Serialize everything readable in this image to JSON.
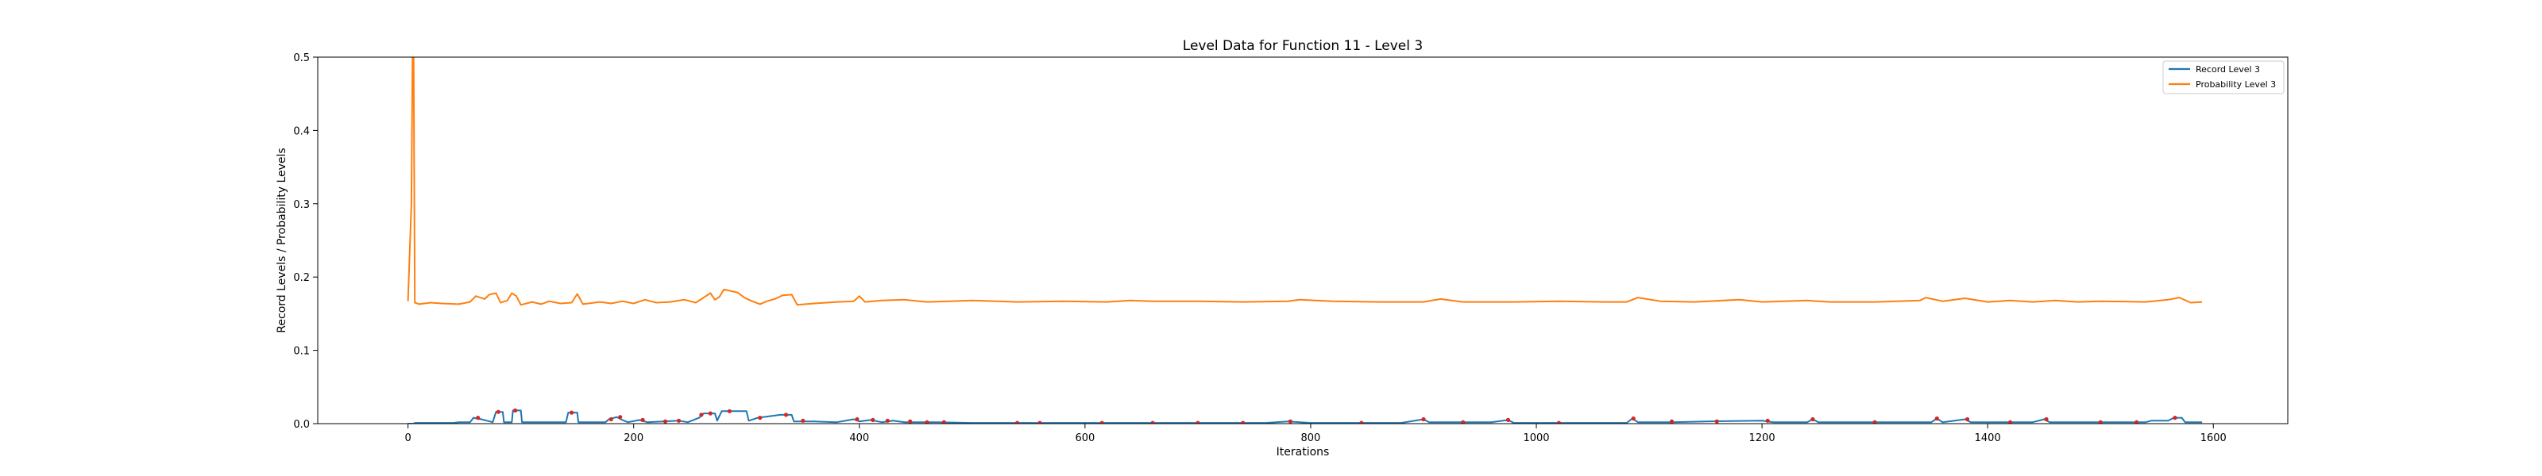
{
  "chart_data": {
    "type": "line",
    "title": "Level Data for Function 11 - Level 3",
    "xlabel": "Iterations",
    "ylabel": "Record Levels / Probability Levels",
    "xlim": [
      -80,
      1666
    ],
    "ylim": [
      0,
      0.5
    ],
    "x_ticks": [
      0,
      200,
      400,
      600,
      800,
      1000,
      1200,
      1400,
      1600
    ],
    "y_ticks": [
      0.0,
      0.1,
      0.2,
      0.3,
      0.4,
      0.5
    ],
    "x_tick_labels": [
      "0",
      "200",
      "400",
      "600",
      "800",
      "1000",
      "1200",
      "1400",
      "1600"
    ],
    "y_tick_labels": [
      "0.0",
      "0.1",
      "0.2",
      "0.3",
      "0.4",
      "0.5"
    ],
    "legend_position": "top-right",
    "grid": false,
    "series": [
      {
        "name": "Record Level 3",
        "color": "#1f77b4",
        "points": [
          [
            0,
            0
          ],
          [
            5,
            0
          ],
          [
            6,
            0.001
          ],
          [
            40,
            0.001
          ],
          [
            45,
            0.002
          ],
          [
            55,
            0.002
          ],
          [
            58,
            0.008
          ],
          [
            65,
            0.006
          ],
          [
            70,
            0.004
          ],
          [
            75,
            0.002
          ],
          [
            78,
            0.016
          ],
          [
            84,
            0.016
          ],
          [
            85,
            0.002
          ],
          [
            92,
            0.002
          ],
          [
            93,
            0.018
          ],
          [
            100,
            0.018
          ],
          [
            101,
            0.002
          ],
          [
            140,
            0.002
          ],
          [
            142,
            0.015
          ],
          [
            150,
            0.015
          ],
          [
            151,
            0.002
          ],
          [
            175,
            0.002
          ],
          [
            178,
            0.006
          ],
          [
            185,
            0.009
          ],
          [
            190,
            0.005
          ],
          [
            195,
            0.002
          ],
          [
            205,
            0.005
          ],
          [
            212,
            0.002
          ],
          [
            240,
            0.004
          ],
          [
            248,
            0.002
          ],
          [
            258,
            0.008
          ],
          [
            262,
            0.014
          ],
          [
            272,
            0.014
          ],
          [
            274,
            0.004
          ],
          [
            278,
            0.017
          ],
          [
            300,
            0.017
          ],
          [
            302,
            0.004
          ],
          [
            310,
            0.008
          ],
          [
            330,
            0.012
          ],
          [
            340,
            0.012
          ],
          [
            342,
            0.003
          ],
          [
            360,
            0.003
          ],
          [
            380,
            0.002
          ],
          [
            395,
            0.006
          ],
          [
            400,
            0.003
          ],
          [
            410,
            0.005
          ],
          [
            420,
            0.002
          ],
          [
            430,
            0.004
          ],
          [
            440,
            0.002
          ],
          [
            470,
            0.002
          ],
          [
            500,
            0.001
          ],
          [
            600,
            0.001
          ],
          [
            760,
            0.001
          ],
          [
            780,
            0.003
          ],
          [
            800,
            0.001
          ],
          [
            880,
            0.001
          ],
          [
            900,
            0.006
          ],
          [
            905,
            0.002
          ],
          [
            960,
            0.002
          ],
          [
            975,
            0.005
          ],
          [
            980,
            0.001
          ],
          [
            1080,
            0.001
          ],
          [
            1085,
            0.007
          ],
          [
            1090,
            0.002
          ],
          [
            1120,
            0.002
          ],
          [
            1150,
            0.003
          ],
          [
            1200,
            0.004
          ],
          [
            1210,
            0.002
          ],
          [
            1240,
            0.002
          ],
          [
            1245,
            0.006
          ],
          [
            1250,
            0.002
          ],
          [
            1350,
            0.002
          ],
          [
            1355,
            0.007
          ],
          [
            1360,
            0.002
          ],
          [
            1380,
            0.006
          ],
          [
            1385,
            0.002
          ],
          [
            1440,
            0.002
          ],
          [
            1450,
            0.006
          ],
          [
            1455,
            0.002
          ],
          [
            1540,
            0.002
          ],
          [
            1545,
            0.004
          ],
          [
            1560,
            0.004
          ],
          [
            1565,
            0.008
          ],
          [
            1572,
            0.008
          ],
          [
            1575,
            0.002
          ],
          [
            1590,
            0.002
          ]
        ],
        "markers": [
          [
            62,
            0.008
          ],
          [
            80,
            0.016
          ],
          [
            95,
            0.018
          ],
          [
            145,
            0.015
          ],
          [
            180,
            0.006
          ],
          [
            188,
            0.009
          ],
          [
            208,
            0.005
          ],
          [
            228,
            0.003
          ],
          [
            240,
            0.004
          ],
          [
            260,
            0.012
          ],
          [
            268,
            0.014
          ],
          [
            285,
            0.017
          ],
          [
            312,
            0.008
          ],
          [
            335,
            0.012
          ],
          [
            350,
            0.004
          ],
          [
            398,
            0.006
          ],
          [
            412,
            0.005
          ],
          [
            425,
            0.004
          ],
          [
            445,
            0.003
          ],
          [
            460,
            0.002
          ],
          [
            475,
            0.002
          ],
          [
            540,
            0.001
          ],
          [
            560,
            0.001
          ],
          [
            615,
            0.001
          ],
          [
            660,
            0.001
          ],
          [
            700,
            0.001
          ],
          [
            740,
            0.001
          ],
          [
            782,
            0.003
          ],
          [
            845,
            0.001
          ],
          [
            900,
            0.006
          ],
          [
            935,
            0.002
          ],
          [
            975,
            0.005
          ],
          [
            1020,
            0.001
          ],
          [
            1086,
            0.007
          ],
          [
            1120,
            0.003
          ],
          [
            1160,
            0.003
          ],
          [
            1205,
            0.004
          ],
          [
            1245,
            0.006
          ],
          [
            1300,
            0.002
          ],
          [
            1355,
            0.007
          ],
          [
            1382,
            0.006
          ],
          [
            1420,
            0.002
          ],
          [
            1452,
            0.006
          ],
          [
            1500,
            0.002
          ],
          [
            1532,
            0.002
          ],
          [
            1566,
            0.008
          ]
        ]
      },
      {
        "name": "Probability Level 3",
        "color": "#ff7f0e",
        "points": [
          [
            0,
            0.167
          ],
          [
            3,
            0.3
          ],
          [
            4,
            0.5
          ],
          [
            5,
            0.5
          ],
          [
            6,
            0.165
          ],
          [
            10,
            0.163
          ],
          [
            20,
            0.165
          ],
          [
            30,
            0.164
          ],
          [
            45,
            0.163
          ],
          [
            55,
            0.166
          ],
          [
            60,
            0.174
          ],
          [
            68,
            0.17
          ],
          [
            72,
            0.176
          ],
          [
            78,
            0.178
          ],
          [
            82,
            0.165
          ],
          [
            88,
            0.168
          ],
          [
            92,
            0.178
          ],
          [
            96,
            0.174
          ],
          [
            100,
            0.162
          ],
          [
            110,
            0.166
          ],
          [
            118,
            0.163
          ],
          [
            125,
            0.167
          ],
          [
            135,
            0.164
          ],
          [
            145,
            0.165
          ],
          [
            150,
            0.177
          ],
          [
            155,
            0.163
          ],
          [
            170,
            0.166
          ],
          [
            180,
            0.164
          ],
          [
            190,
            0.167
          ],
          [
            200,
            0.164
          ],
          [
            210,
            0.169
          ],
          [
            220,
            0.165
          ],
          [
            232,
            0.166
          ],
          [
            245,
            0.169
          ],
          [
            255,
            0.165
          ],
          [
            262,
            0.172
          ],
          [
            268,
            0.178
          ],
          [
            272,
            0.169
          ],
          [
            276,
            0.173
          ],
          [
            280,
            0.183
          ],
          [
            286,
            0.181
          ],
          [
            292,
            0.179
          ],
          [
            298,
            0.172
          ],
          [
            305,
            0.167
          ],
          [
            312,
            0.163
          ],
          [
            318,
            0.167
          ],
          [
            325,
            0.17
          ],
          [
            332,
            0.175
          ],
          [
            340,
            0.176
          ],
          [
            345,
            0.162
          ],
          [
            360,
            0.164
          ],
          [
            380,
            0.166
          ],
          [
            395,
            0.167
          ],
          [
            400,
            0.174
          ],
          [
            405,
            0.166
          ],
          [
            420,
            0.168
          ],
          [
            440,
            0.169
          ],
          [
            460,
            0.166
          ],
          [
            480,
            0.167
          ],
          [
            500,
            0.168
          ],
          [
            540,
            0.166
          ],
          [
            580,
            0.167
          ],
          [
            620,
            0.166
          ],
          [
            640,
            0.168
          ],
          [
            660,
            0.167
          ],
          [
            700,
            0.167
          ],
          [
            740,
            0.166
          ],
          [
            780,
            0.167
          ],
          [
            790,
            0.169
          ],
          [
            820,
            0.167
          ],
          [
            860,
            0.166
          ],
          [
            900,
            0.166
          ],
          [
            915,
            0.17
          ],
          [
            935,
            0.166
          ],
          [
            980,
            0.166
          ],
          [
            1020,
            0.167
          ],
          [
            1060,
            0.166
          ],
          [
            1080,
            0.166
          ],
          [
            1090,
            0.172
          ],
          [
            1110,
            0.167
          ],
          [
            1140,
            0.166
          ],
          [
            1180,
            0.169
          ],
          [
            1200,
            0.166
          ],
          [
            1240,
            0.168
          ],
          [
            1260,
            0.166
          ],
          [
            1300,
            0.166
          ],
          [
            1340,
            0.168
          ],
          [
            1345,
            0.172
          ],
          [
            1360,
            0.167
          ],
          [
            1380,
            0.171
          ],
          [
            1400,
            0.166
          ],
          [
            1420,
            0.168
          ],
          [
            1440,
            0.166
          ],
          [
            1460,
            0.168
          ],
          [
            1480,
            0.166
          ],
          [
            1500,
            0.167
          ],
          [
            1540,
            0.166
          ],
          [
            1560,
            0.169
          ],
          [
            1570,
            0.172
          ],
          [
            1580,
            0.165
          ],
          [
            1590,
            0.166
          ]
        ]
      }
    ]
  }
}
